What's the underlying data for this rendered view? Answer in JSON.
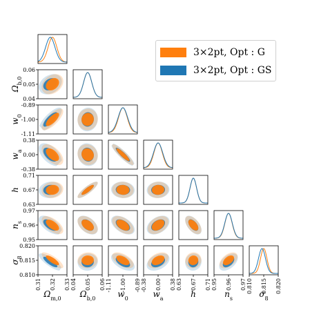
{
  "chart_data": {
    "type": "corner",
    "parameters": [
      {
        "key": "om",
        "label": "Ω_{m,0}",
        "range": [
          0.31,
          0.33
        ],
        "ticks": [
          "0.31",
          "0.32",
          "0.33"
        ]
      },
      {
        "key": "ob",
        "label": "Ω_{b,0}",
        "range": [
          0.04,
          0.06
        ],
        "ticks": [
          "0.04",
          "0.05",
          "0.06"
        ]
      },
      {
        "key": "w0",
        "label": "w_0",
        "range": [
          -1.11,
          -0.89
        ],
        "ticks": [
          "-1.11",
          "-1.00",
          "-0.89"
        ]
      },
      {
        "key": "wa",
        "label": "w_a",
        "range": [
          -0.38,
          0.38
        ],
        "ticks": [
          "-0.38",
          "0.00",
          "0.38"
        ]
      },
      {
        "key": "h",
        "label": "h",
        "range": [
          0.63,
          0.71
        ],
        "ticks": [
          "0.63",
          "0.67",
          "0.71"
        ]
      },
      {
        "key": "ns",
        "label": "n_s",
        "range": [
          0.95,
          0.97
        ],
        "ticks": [
          "0.95",
          "0.96",
          "0.97"
        ]
      },
      {
        "key": "s8",
        "label": "σ_8",
        "range": [
          0.81,
          0.82
        ],
        "ticks": [
          "0.810",
          "0.815",
          "0.820"
        ]
      }
    ],
    "fiducial": [
      0.32,
      0.05,
      -1.0,
      0.0,
      0.67,
      0.96,
      0.815
    ],
    "series": [
      {
        "name": "3×2pt, Opt : G",
        "color": "#ff7f0e",
        "sigma": [
          0.003,
          0.0028,
          0.033,
          0.11,
          0.009,
          0.0025,
          0.0011
        ],
        "corr": {
          "1,0": 0.3,
          "2,0": 0.75,
          "2,1": 0.05,
          "3,0": -0.55,
          "3,1": -0.1,
          "3,2": -0.9,
          "4,0": 0.1,
          "4,1": 0.85,
          "4,2": -0.05,
          "4,3": 0.05,
          "5,0": -0.6,
          "5,1": -0.45,
          "5,2": -0.5,
          "5,3": 0.4,
          "5,4": -0.55,
          "6,0": -0.8,
          "6,1": 0.05,
          "6,2": -0.55,
          "6,3": 0.4,
          "6,4": 0.05,
          "6,5": 0.5
        }
      },
      {
        "name": "3×2pt, Opt : GS",
        "color": "#1f77b4",
        "sigma": [
          0.0032,
          0.0028,
          0.036,
          0.12,
          0.0091,
          0.0026,
          0.0012
        ],
        "corr": {
          "1,0": 0.3,
          "2,0": 0.78,
          "2,1": 0.05,
          "3,0": -0.55,
          "3,1": -0.1,
          "3,2": -0.9,
          "4,0": 0.1,
          "4,1": 0.85,
          "4,2": -0.05,
          "4,3": 0.05,
          "5,0": -0.6,
          "5,1": -0.45,
          "5,2": -0.5,
          "5,3": 0.4,
          "5,4": -0.55,
          "6,0": -0.82,
          "6,1": 0.05,
          "6,2": -0.55,
          "6,3": 0.4,
          "6,4": 0.05,
          "6,5": 0.5
        },
        "mean_shift": [
          -0.0015,
          0,
          0,
          0,
          0,
          0,
          -0.0006
        ]
      }
    ],
    "legend": {
      "placement": "upper-right",
      "entries": [
        "3×2pt, Opt : G",
        "3×2pt, Opt : GS"
      ]
    },
    "contour_levels": [
      "1σ",
      "2σ"
    ]
  }
}
